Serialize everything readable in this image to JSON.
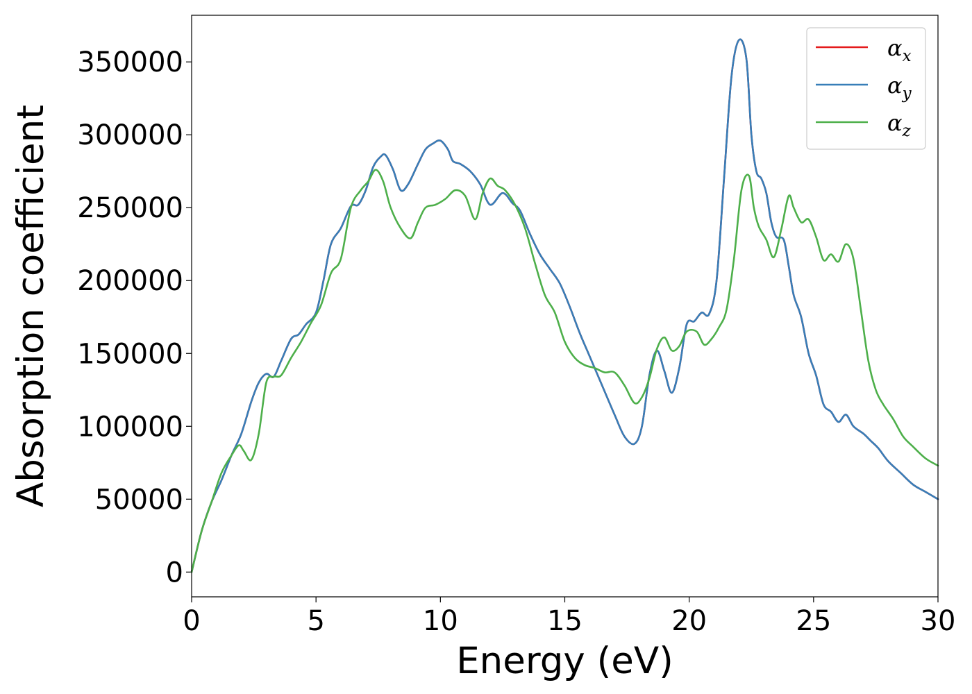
{
  "chart_data": {
    "type": "line",
    "xlabel": "Energy (eV)",
    "ylabel": "Absorption coefficient",
    "xlim": [
      0,
      30
    ],
    "ylim": [
      -17000,
      382000
    ],
    "xticks": [
      0,
      5,
      10,
      15,
      20,
      25,
      30
    ],
    "xtick_labels": [
      "0",
      "5",
      "10",
      "15",
      "20",
      "25",
      "30"
    ],
    "yticks": [
      0,
      50000,
      100000,
      150000,
      200000,
      250000,
      300000,
      350000
    ],
    "ytick_labels": [
      "0",
      "50000",
      "100000",
      "150000",
      "200000",
      "250000",
      "300000",
      "350000"
    ],
    "grid": false,
    "legend_position": "top-right",
    "series": [
      {
        "name": "α_x",
        "symbol": "α",
        "subscript": "x",
        "color": "#e41a1c",
        "x": [
          0,
          0.4,
          0.8,
          1.2,
          1.6,
          2.0,
          2.4,
          2.7,
          3.0,
          3.3,
          3.6,
          4.0,
          4.3,
          4.6,
          5.0,
          5.3,
          5.6,
          6.0,
          6.4,
          6.7,
          7.0,
          7.3,
          7.6,
          7.8,
          8.1,
          8.4,
          8.7,
          9.1,
          9.4,
          9.7,
          10.0,
          10.3,
          10.5,
          10.8,
          11.2,
          11.6,
          12.0,
          12.5,
          12.9,
          13.2,
          13.6,
          14.0,
          14.4,
          14.8,
          15.2,
          15.6,
          16.0,
          16.5,
          17.0,
          17.4,
          17.8,
          18.1,
          18.4,
          18.7,
          19.0,
          19.3,
          19.6,
          19.9,
          20.2,
          20.5,
          20.8,
          21.1,
          21.4,
          21.7,
          22.0,
          22.3,
          22.5,
          22.7,
          22.9,
          23.1,
          23.3,
          23.5,
          23.8,
          24.0,
          24.2,
          24.5,
          24.8,
          25.1,
          25.4,
          25.7,
          26.0,
          26.3,
          26.6,
          27.0,
          27.3,
          27.6,
          28.0,
          28.5,
          29.0,
          29.5,
          30.0
        ],
        "y": [
          0,
          28000,
          48000,
          63000,
          80000,
          95000,
          117000,
          130000,
          136000,
          134000,
          145000,
          160000,
          163000,
          170000,
          178000,
          200000,
          225000,
          236000,
          251000,
          252000,
          262000,
          278000,
          285000,
          286000,
          276000,
          262000,
          266000,
          280000,
          290000,
          294000,
          296000,
          290000,
          282000,
          280000,
          275000,
          266000,
          252000,
          260000,
          253000,
          248000,
          232000,
          218000,
          208000,
          198000,
          182000,
          164000,
          148000,
          128000,
          108000,
          93000,
          88000,
          100000,
          135000,
          152000,
          138000,
          123000,
          140000,
          170000,
          172000,
          178000,
          177000,
          200000,
          270000,
          340000,
          365000,
          352000,
          300000,
          275000,
          270000,
          260000,
          240000,
          230000,
          228000,
          210000,
          190000,
          175000,
          150000,
          135000,
          115000,
          110000,
          103000,
          108000,
          100000,
          95000,
          90000,
          85000,
          76000,
          68000,
          60000,
          55000,
          50000
        ]
      },
      {
        "name": "α_y",
        "symbol": "α",
        "subscript": "y",
        "color": "#377eb8",
        "x": [
          0,
          0.4,
          0.8,
          1.2,
          1.6,
          2.0,
          2.4,
          2.7,
          3.0,
          3.3,
          3.6,
          4.0,
          4.3,
          4.6,
          5.0,
          5.3,
          5.6,
          6.0,
          6.4,
          6.7,
          7.0,
          7.3,
          7.6,
          7.8,
          8.1,
          8.4,
          8.7,
          9.1,
          9.4,
          9.7,
          10.0,
          10.3,
          10.5,
          10.8,
          11.2,
          11.6,
          12.0,
          12.5,
          12.9,
          13.2,
          13.6,
          14.0,
          14.4,
          14.8,
          15.2,
          15.6,
          16.0,
          16.5,
          17.0,
          17.4,
          17.8,
          18.1,
          18.4,
          18.7,
          19.0,
          19.3,
          19.6,
          19.9,
          20.2,
          20.5,
          20.8,
          21.1,
          21.4,
          21.7,
          22.0,
          22.3,
          22.5,
          22.7,
          22.9,
          23.1,
          23.3,
          23.5,
          23.8,
          24.0,
          24.2,
          24.5,
          24.8,
          25.1,
          25.4,
          25.7,
          26.0,
          26.3,
          26.6,
          27.0,
          27.3,
          27.6,
          28.0,
          28.5,
          29.0,
          29.5,
          30.0
        ],
        "y": [
          0,
          28000,
          48000,
          63000,
          80000,
          95000,
          117000,
          130000,
          136000,
          134000,
          145000,
          160000,
          163000,
          170000,
          178000,
          200000,
          225000,
          236000,
          251000,
          252000,
          262000,
          278000,
          285000,
          286000,
          276000,
          262000,
          266000,
          280000,
          290000,
          294000,
          296000,
          290000,
          282000,
          280000,
          275000,
          266000,
          252000,
          260000,
          253000,
          248000,
          232000,
          218000,
          208000,
          198000,
          182000,
          164000,
          148000,
          128000,
          108000,
          93000,
          88000,
          100000,
          135000,
          152000,
          138000,
          123000,
          140000,
          170000,
          172000,
          178000,
          177000,
          200000,
          270000,
          340000,
          365000,
          352000,
          300000,
          275000,
          270000,
          260000,
          240000,
          230000,
          228000,
          210000,
          190000,
          175000,
          150000,
          135000,
          115000,
          110000,
          103000,
          108000,
          100000,
          95000,
          90000,
          85000,
          76000,
          68000,
          60000,
          55000,
          50000
        ]
      },
      {
        "name": "α_z",
        "symbol": "α",
        "subscript": "z",
        "color": "#4daf4a",
        "x": [
          0,
          0.4,
          0.8,
          1.2,
          1.6,
          1.9,
          2.1,
          2.4,
          2.7,
          3.0,
          3.3,
          3.6,
          4.0,
          4.4,
          4.8,
          5.2,
          5.6,
          6.0,
          6.4,
          6.8,
          7.1,
          7.4,
          7.7,
          8.0,
          8.4,
          8.8,
          9.1,
          9.4,
          9.8,
          10.2,
          10.6,
          11.0,
          11.4,
          11.7,
          12.0,
          12.3,
          12.6,
          13.0,
          13.4,
          13.8,
          14.2,
          14.6,
          15.0,
          15.4,
          15.8,
          16.2,
          16.6,
          17.0,
          17.4,
          17.8,
          18.1,
          18.4,
          18.7,
          19.0,
          19.3,
          19.6,
          19.9,
          20.3,
          20.6,
          20.9,
          21.2,
          21.5,
          21.8,
          22.1,
          22.4,
          22.6,
          22.8,
          23.1,
          23.4,
          23.7,
          24.0,
          24.2,
          24.5,
          24.8,
          25.1,
          25.4,
          25.7,
          26.0,
          26.3,
          26.6,
          26.9,
          27.2,
          27.5,
          27.8,
          28.2,
          28.6,
          29.0,
          29.5,
          30.0
        ],
        "y": [
          0,
          28000,
          48000,
          68000,
          80000,
          87000,
          83000,
          77000,
          95000,
          130000,
          134000,
          135000,
          147000,
          158000,
          171000,
          183000,
          205000,
          215000,
          250000,
          262000,
          268000,
          276000,
          268000,
          250000,
          236000,
          229000,
          240000,
          250000,
          252000,
          256000,
          262000,
          258000,
          242000,
          260000,
          270000,
          265000,
          262000,
          252000,
          236000,
          212000,
          190000,
          178000,
          158000,
          147000,
          142000,
          140000,
          137000,
          137000,
          128000,
          116000,
          120000,
          133000,
          153000,
          161000,
          152000,
          155000,
          165000,
          165000,
          156000,
          160000,
          168000,
          180000,
          215000,
          262000,
          272000,
          250000,
          237000,
          228000,
          216000,
          235000,
          258000,
          250000,
          240000,
          242000,
          230000,
          214000,
          218000,
          213000,
          225000,
          215000,
          180000,
          145000,
          125000,
          115000,
          105000,
          93000,
          86000,
          78000,
          73000
        ]
      }
    ]
  }
}
